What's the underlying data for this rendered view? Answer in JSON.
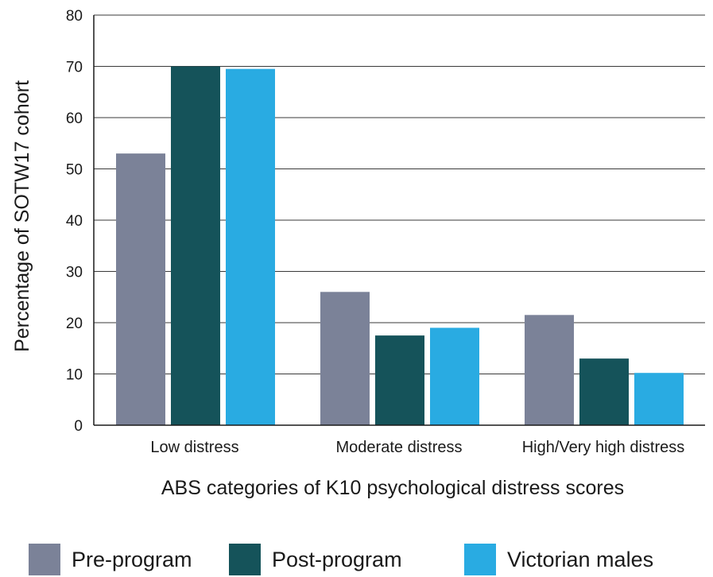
{
  "chart_data": {
    "type": "bar",
    "xlabel": "ABS categories of K10 psychological distress scores",
    "ylabel": "Percentage of SOTW17 cohort",
    "categories": [
      "Low distress",
      "Moderate distress",
      "High/Very high distress"
    ],
    "series": [
      {
        "name": "Pre-program",
        "color": "#7b8298",
        "values": [
          53,
          26,
          21.5
        ]
      },
      {
        "name": "Post-program",
        "color": "#15535a",
        "values": [
          70,
          17.5,
          13
        ]
      },
      {
        "name": "Victorian males",
        "color": "#29abe2",
        "values": [
          69.5,
          19,
          10.2
        ]
      }
    ],
    "ylim": [
      0,
      80
    ],
    "yticks": [
      0,
      10,
      20,
      30,
      40,
      50,
      60,
      70,
      80
    ],
    "grid": true,
    "legend_position": "bottom"
  }
}
